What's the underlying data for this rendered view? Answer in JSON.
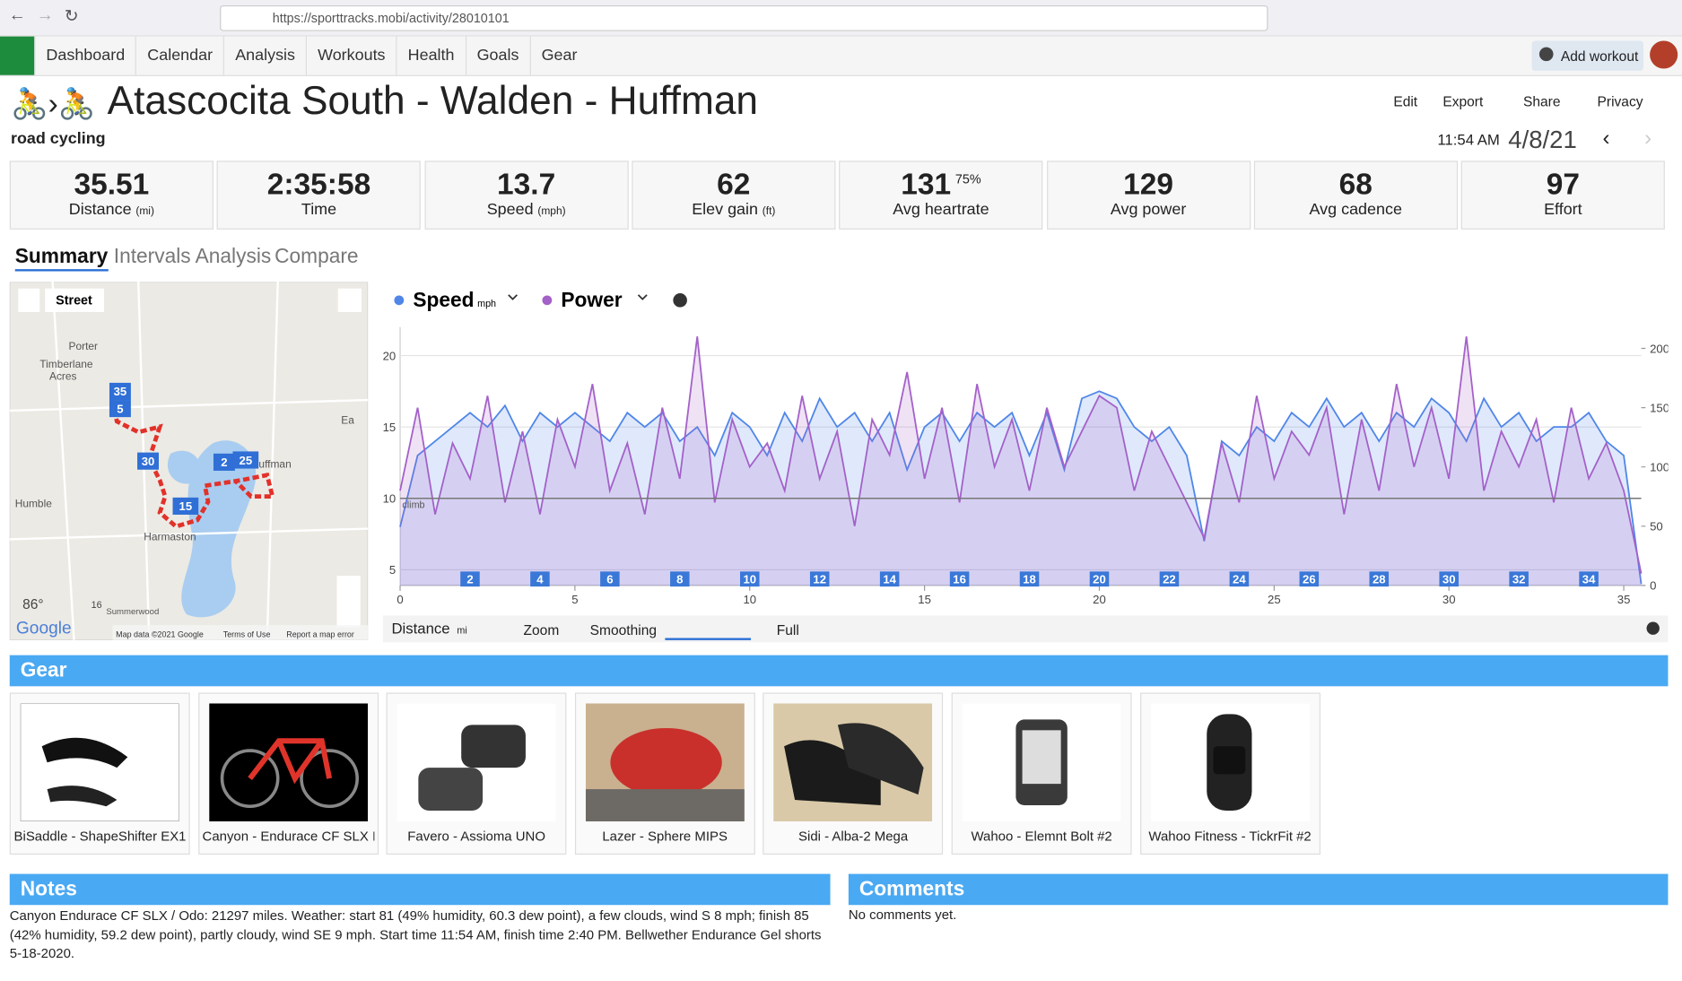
{
  "browser": {
    "url": "https://sporttracks.mobi/activity/28010101"
  },
  "nav": {
    "items": [
      "Dashboard",
      "Calendar",
      "Analysis",
      "Workouts",
      "Health",
      "Goals",
      "Gear"
    ],
    "add": "Add workout"
  },
  "header": {
    "title": "Atascocita South - Walden - Huffman",
    "subtitle": "road cycling",
    "actions": [
      "Edit",
      "Export",
      "Share",
      "Privacy"
    ],
    "time": "11:54 AM",
    "date": "4/8/21"
  },
  "stats": [
    {
      "value": "35.51",
      "label": "Distance",
      "unit": "(mi)"
    },
    {
      "value": "2:35:58",
      "label": "Time"
    },
    {
      "value": "13.7",
      "label": "Speed",
      "unit": "(mph)"
    },
    {
      "value": "62",
      "label": "Elev gain",
      "unit": "(ft)"
    },
    {
      "value": "131",
      "extra": "75%",
      "label": "Avg heartrate"
    },
    {
      "value": "129",
      "label": "Avg power"
    },
    {
      "value": "68",
      "label": "Avg cadence"
    },
    {
      "value": "97",
      "label": "Effort"
    }
  ],
  "tabs": [
    "Summary",
    "Intervals",
    "Analysis",
    "Compare"
  ],
  "map": {
    "layer": "Street",
    "places": [
      "Porter",
      "Timberlane",
      "Acres",
      "Humble",
      "Harmaston",
      "Huffman",
      "Summerwood",
      "Ea"
    ],
    "markers": [
      "35",
      "5",
      "30",
      "2",
      "25",
      "15"
    ],
    "temperature": "86°",
    "wind": "16",
    "logo": "Google",
    "footer": [
      "Map data ©2021 Google",
      "Terms of Use",
      "Report a map error"
    ]
  },
  "chart_data": {
    "type": "line",
    "x": [
      0,
      0.5,
      1,
      1.5,
      2,
      2.5,
      3,
      3.5,
      4,
      4.5,
      5,
      5.5,
      6,
      6.5,
      7,
      7.5,
      8,
      8.5,
      9,
      9.5,
      10,
      10.5,
      11,
      11.5,
      12,
      12.5,
      13,
      13.5,
      14,
      14.5,
      15,
      15.5,
      16,
      16.5,
      17,
      17.5,
      18,
      18.5,
      19,
      19.5,
      20,
      20.5,
      21,
      21.5,
      22,
      22.5,
      23,
      23.5,
      24,
      24.5,
      25,
      25.5,
      26,
      26.5,
      27,
      27.5,
      28,
      28.5,
      29,
      29.5,
      30,
      30.5,
      31,
      31.5,
      32,
      32.5,
      33,
      33.5,
      34,
      34.5,
      35,
      35.5
    ],
    "series": [
      {
        "name": "Speed",
        "unit": "mph",
        "color": "#4f86e8",
        "values": [
          8,
          13,
          14,
          15,
          16,
          15,
          16.5,
          14,
          16,
          15,
          16,
          15,
          14,
          16,
          15,
          16,
          14,
          15,
          13,
          16,
          15,
          13,
          16,
          14,
          17,
          15,
          16,
          14,
          16,
          12,
          15,
          16,
          14,
          16,
          15,
          16,
          13,
          16,
          12,
          17,
          17.5,
          17,
          15,
          14,
          15,
          13,
          7,
          14,
          13,
          15,
          14,
          16,
          15,
          17,
          15,
          16,
          14,
          16,
          15,
          17,
          16,
          14,
          17,
          15,
          16,
          14,
          15,
          15,
          16,
          14,
          13,
          4
        ]
      },
      {
        "name": "Power",
        "color": "#a461c9",
        "axis": "y2",
        "values": [
          80,
          150,
          60,
          120,
          90,
          160,
          70,
          130,
          60,
          140,
          100,
          170,
          80,
          120,
          60,
          150,
          90,
          210,
          70,
          140,
          100,
          120,
          80,
          160,
          90,
          130,
          50,
          140,
          110,
          180,
          90,
          150,
          70,
          170,
          100,
          140,
          80,
          150,
          100,
          130,
          160,
          150,
          80,
          130,
          100,
          70,
          40,
          120,
          70,
          160,
          90,
          130,
          110,
          150,
          60,
          140,
          80,
          170,
          100,
          150,
          90,
          210,
          80,
          130,
          100,
          140,
          70,
          150,
          90,
          120,
          80,
          10
        ]
      }
    ],
    "xlim": [
      0,
      35.5
    ],
    "ylim": [
      3.9,
      22
    ],
    "y2lim": [
      0,
      218
    ],
    "xticks": [
      0,
      5,
      10,
      15,
      20,
      25,
      30,
      35
    ],
    "yticks": [
      5,
      10,
      15,
      20
    ],
    "y2ticks": [
      0,
      50,
      100,
      150,
      200
    ],
    "grid": true,
    "reference_line": {
      "value": 10,
      "label": "climb"
    },
    "mile_markers": [
      2,
      4,
      6,
      8,
      10,
      12,
      14,
      16,
      18,
      20,
      22,
      24,
      26,
      28,
      30,
      32,
      34
    ]
  },
  "chart_controls": {
    "axis": "Distance",
    "unit": "mi",
    "zoom": "Zoom",
    "smoothing": "Smoothing",
    "full": "Full"
  },
  "gear": {
    "title": "Gear",
    "items": [
      "BiSaddle - ShapeShifter EX1",
      "Canyon - Endurace CF SLX I",
      "Favero - Assioma UNO",
      "Lazer - Sphere MIPS",
      "Sidi - Alba-2 Mega",
      "Wahoo - Elemnt Bolt #2",
      "Wahoo Fitness - TickrFit #2"
    ]
  },
  "notes": {
    "title": "Notes",
    "text": "Canyon Endurace CF SLX / Odo: 21297 miles. Weather: start 81 (49% humidity, 60.3 dew point), a few clouds, wind S 8 mph; finish 85 (42% humidity, 59.2 dew point), partly cloudy, wind SE 9 mph. Start time 11:54 AM, finish time 2:40 PM. Bellwether Endurance Gel shorts 5-18-2020."
  },
  "comments": {
    "title": "Comments",
    "text": "No comments yet."
  }
}
